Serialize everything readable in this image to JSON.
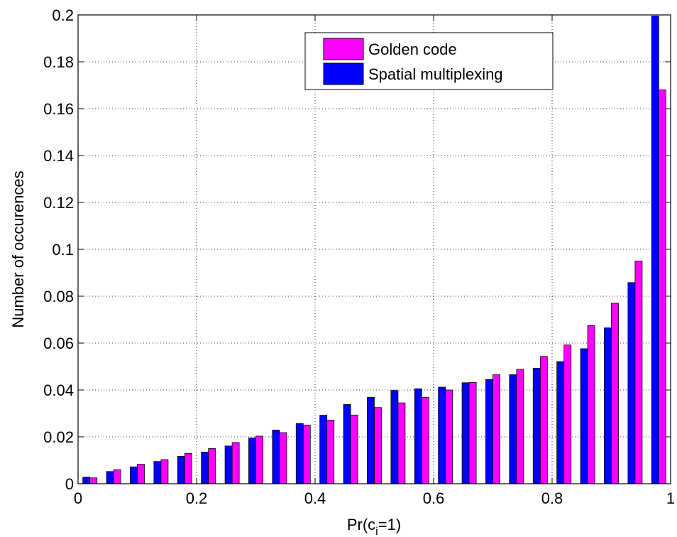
{
  "chart_data": {
    "type": "bar",
    "xlabel": "Pr(c_i=1)",
    "xlabel_main": "Pr(c",
    "xlabel_sub": "i",
    "xlabel_tail": "=1)",
    "ylabel": "Number of occurences",
    "xlim": [
      0,
      1
    ],
    "ylim": [
      0,
      0.2
    ],
    "x_ticks": [
      0,
      0.2,
      0.4,
      0.6,
      0.8,
      1
    ],
    "x_tick_labels": [
      "0",
      "0.2",
      "0.4",
      "0.6",
      "0.8",
      "1"
    ],
    "y_ticks": [
      0,
      0.02,
      0.04,
      0.06,
      0.08,
      0.1,
      0.12,
      0.14,
      0.16,
      0.18,
      0.2
    ],
    "y_tick_labels": [
      "0",
      "0.02",
      "0.04",
      "0.06",
      "0.08",
      "0.1",
      "0.12",
      "0.14",
      "0.16",
      "0.18",
      "0.2"
    ],
    "grid": true,
    "legend_position": "top-right",
    "x": [
      0.02,
      0.06,
      0.1,
      0.14,
      0.18,
      0.22,
      0.26,
      0.3,
      0.34,
      0.38,
      0.42,
      0.46,
      0.5,
      0.54,
      0.58,
      0.62,
      0.66,
      0.7,
      0.74,
      0.78,
      0.82,
      0.86,
      0.9,
      0.94,
      0.98
    ],
    "series": [
      {
        "name": "Golden code",
        "color": "#ff00ff",
        "values": [
          0.0025,
          0.006,
          0.0083,
          0.0103,
          0.0129,
          0.015,
          0.0176,
          0.0203,
          0.0218,
          0.025,
          0.0271,
          0.0293,
          0.0325,
          0.0345,
          0.0368,
          0.04,
          0.0432,
          0.0465,
          0.0488,
          0.0543,
          0.0592,
          0.0675,
          0.077,
          0.095,
          0.168
        ]
      },
      {
        "name": "Spatial multiplexing",
        "color": "#0000ff",
        "values": [
          0.0028,
          0.0052,
          0.0072,
          0.0095,
          0.0117,
          0.0135,
          0.0161,
          0.0195,
          0.0229,
          0.0257,
          0.0292,
          0.0338,
          0.0369,
          0.0398,
          0.0405,
          0.0412,
          0.0431,
          0.0445,
          0.0465,
          0.0493,
          0.0521,
          0.0576,
          0.0665,
          0.0858,
          0.1995
        ]
      }
    ]
  }
}
